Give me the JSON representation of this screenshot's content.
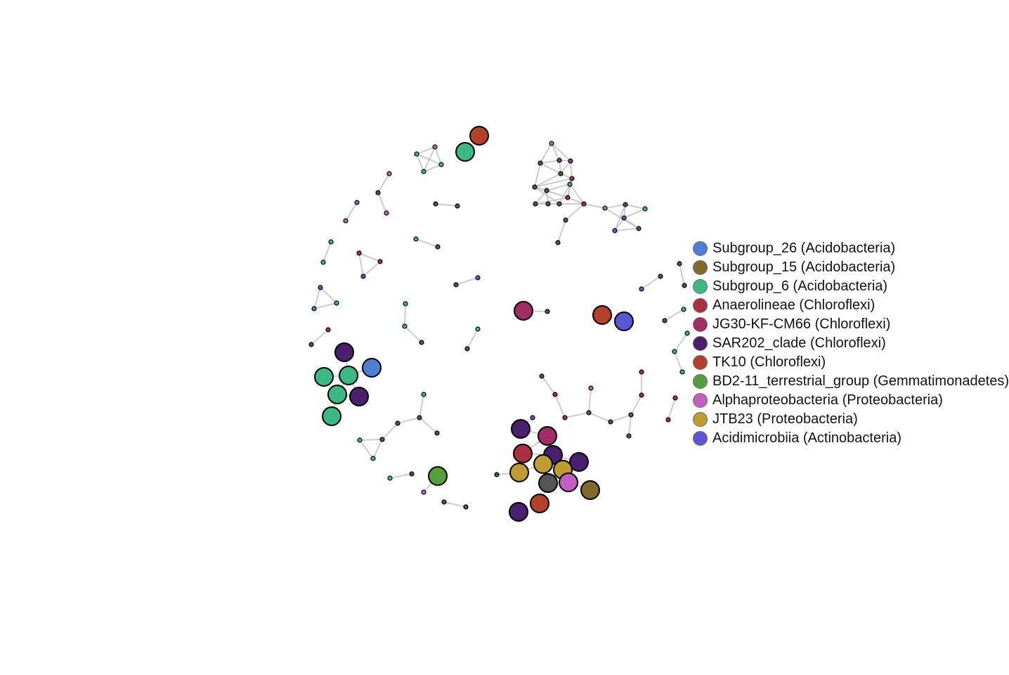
{
  "legend": {
    "items": [
      {
        "label": "Subgroup_26 (Acidobacteria)",
        "color": "#4f7ed6"
      },
      {
        "label": "Subgroup_15 (Acidobacteria)",
        "color": "#806b2c"
      },
      {
        "label": "Subgroup_6 (Acidobacteria)",
        "color": "#3cb884"
      },
      {
        "label": "Anaerolineae (Chloroflexi)",
        "color": "#a8303f"
      },
      {
        "label": "JG30-KF-CM66 (Chloroflexi)",
        "color": "#a02c68"
      },
      {
        "label": "SAR202_clade (Chloroflexi)",
        "color": "#4b1f6f"
      },
      {
        "label": "TK10 (Chloroflexi)",
        "color": "#b5412a"
      },
      {
        "label": "BD2-11_terrestrial_group (Gemmatimonadetes)",
        "color": "#55a03a"
      },
      {
        "label": "Alphaproteobacteria (Proteobacteria)",
        "color": "#c060c0"
      },
      {
        "label": "JTB23 (Proteobacteria)",
        "color": "#bd9c30"
      },
      {
        "label": "Acidimicrobiia (Actinobacteria)",
        "color": "#5a57d6"
      }
    ]
  },
  "colors": {
    "other": "#555555",
    "edge": "#c8c8c8"
  },
  "network": {
    "big_nodes": [
      {
        "id": "b1",
        "group": 6,
        "color_key": "TK10"
      },
      {
        "id": "b2",
        "group": 2,
        "color_key": "Subgroup_6"
      },
      {
        "id": "b3",
        "group": 4
      },
      {
        "id": "b4",
        "group": 6
      },
      {
        "id": "b5",
        "group": 10
      },
      {
        "id": "b6",
        "group": 5
      },
      {
        "id": "b7",
        "group": 0
      },
      {
        "id": "b8",
        "group": 2
      },
      {
        "id": "b9",
        "group": 2
      },
      {
        "id": "b10",
        "group": 2
      },
      {
        "id": "b11",
        "group": 5
      },
      {
        "id": "b12",
        "group": 2
      },
      {
        "id": "b13",
        "group": 7
      },
      {
        "id": "b14",
        "group": 5
      },
      {
        "id": "b15",
        "group": 4
      },
      {
        "id": "b16",
        "group": 3
      },
      {
        "id": "b17",
        "group": 5
      },
      {
        "id": "b18",
        "group": 5
      },
      {
        "id": "b19",
        "group": 9
      },
      {
        "id": "b20",
        "group": 9
      },
      {
        "id": "b21",
        "group": 9
      },
      {
        "id": "b22",
        "group": -1
      },
      {
        "id": "b23",
        "group": 8
      },
      {
        "id": "b24",
        "group": 1
      },
      {
        "id": "b25",
        "group": 6
      },
      {
        "id": "b26",
        "group": 5
      }
    ]
  }
}
